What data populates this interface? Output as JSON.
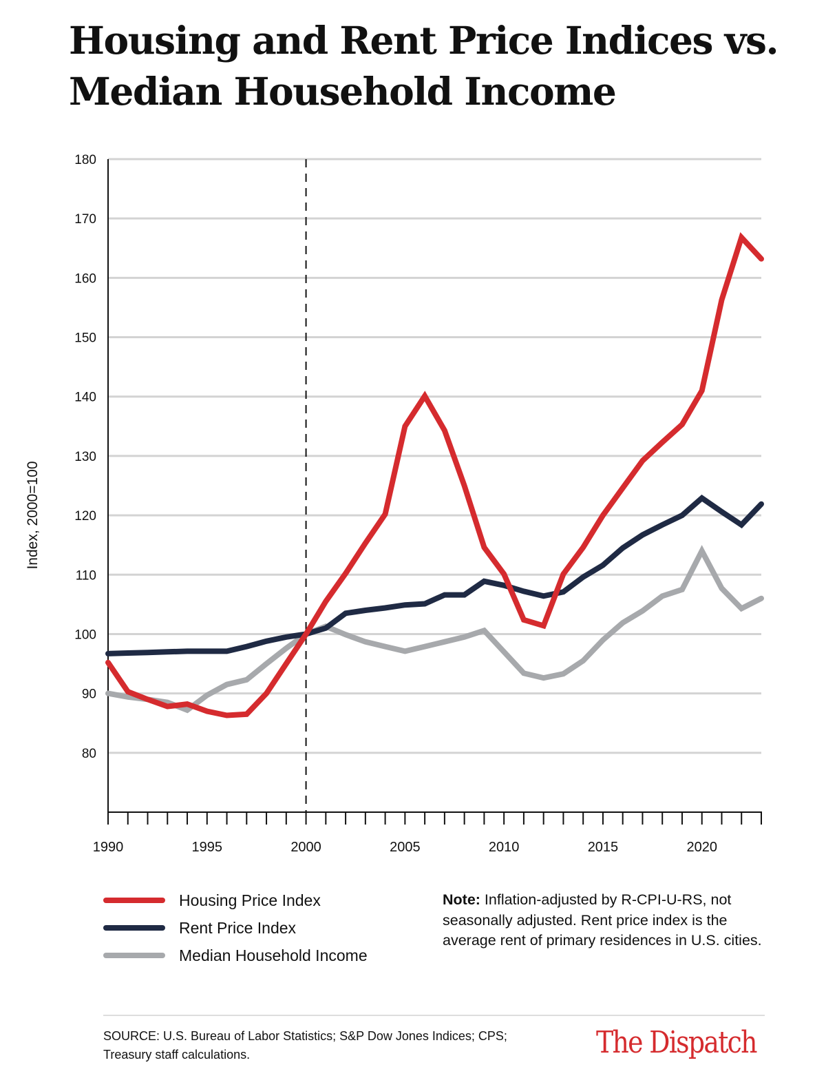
{
  "title_line1": "Housing and Rent Price Indices vs.",
  "title_line2": "Median Household Income",
  "chart_data": {
    "type": "line",
    "title": "Housing and Rent Price Indices vs. Median Household Income",
    "xlabel": "",
    "ylabel": "Index, 2000=100",
    "xlim": [
      1990,
      2023
    ],
    "ylim": [
      70,
      180
    ],
    "y_ticks": [
      80,
      90,
      100,
      110,
      120,
      130,
      140,
      150,
      160,
      170,
      180
    ],
    "x_ticks": [
      1990,
      1995,
      2000,
      2005,
      2010,
      2015,
      2020
    ],
    "grid": "horizontal",
    "reference_line": {
      "x": 2000,
      "style": "dashed"
    },
    "legend_position": "bottom-left",
    "x": [
      1990,
      1991,
      1992,
      1993,
      1994,
      1995,
      1996,
      1997,
      1998,
      1999,
      2000,
      2001,
      2002,
      2003,
      2004,
      2005,
      2006,
      2007,
      2008,
      2009,
      2010,
      2011,
      2012,
      2013,
      2014,
      2015,
      2016,
      2017,
      2018,
      2019,
      2020,
      2021,
      2022,
      2023
    ],
    "series": [
      {
        "name": "Housing Price Index",
        "color": "#d52b2e",
        "values": [
          95.2,
          90.3,
          89,
          87.8,
          88.2,
          87,
          86.3,
          86.5,
          90,
          95,
          100,
          105.5,
          110.2,
          115.3,
          120.2,
          135,
          140.1,
          134.3,
          125,
          114.6,
          110.1,
          102.4,
          101.4,
          110.1,
          114.6,
          120,
          124.6,
          129.2,
          132.3,
          135.3,
          141,
          156.3,
          166.8,
          163.2
        ]
      },
      {
        "name": "Rent Price Index",
        "color": "#1f2a44",
        "values": [
          96.7,
          96.8,
          96.9,
          97,
          97.1,
          97.1,
          97.1,
          97.9,
          98.8,
          99.5,
          100,
          101,
          103.5,
          104,
          104.4,
          104.9,
          105.1,
          106.6,
          106.6,
          108.9,
          108.2,
          107.2,
          106.4,
          107.1,
          109.6,
          111.6,
          114.5,
          116.7,
          118.4,
          120,
          122.9,
          120.6,
          118.4,
          121.9
        ]
      },
      {
        "name": "Median Household Income",
        "color": "#a7a9ac",
        "values": [
          90,
          89.4,
          89,
          88.5,
          87.2,
          89.7,
          91.5,
          92.3,
          95,
          97.6,
          100,
          101.3,
          99.9,
          98.7,
          97.9,
          97.1,
          97.9,
          98.7,
          99.5,
          100.6,
          97,
          93.4,
          92.6,
          93.3,
          95.5,
          99,
          101.9,
          103.9,
          106.4,
          107.5,
          114,
          107.7,
          104.3,
          106
        ]
      }
    ]
  },
  "note_label": "Note:",
  "note_text": " Inflation-adjusted by R-CPI-U-RS, not seasonally adjusted. Rent price index is the average rent of primary residences in U.S. cities.",
  "source": "SOURCE: U.S. Bureau of Labor Statistics; S&P Dow Jones Indices; CPS; Treasury staff calculations.",
  "logo": "The Dispatch",
  "colors": {
    "grid": "#d3d3d3",
    "axis": "#111111",
    "logo": "#d52b2e"
  }
}
